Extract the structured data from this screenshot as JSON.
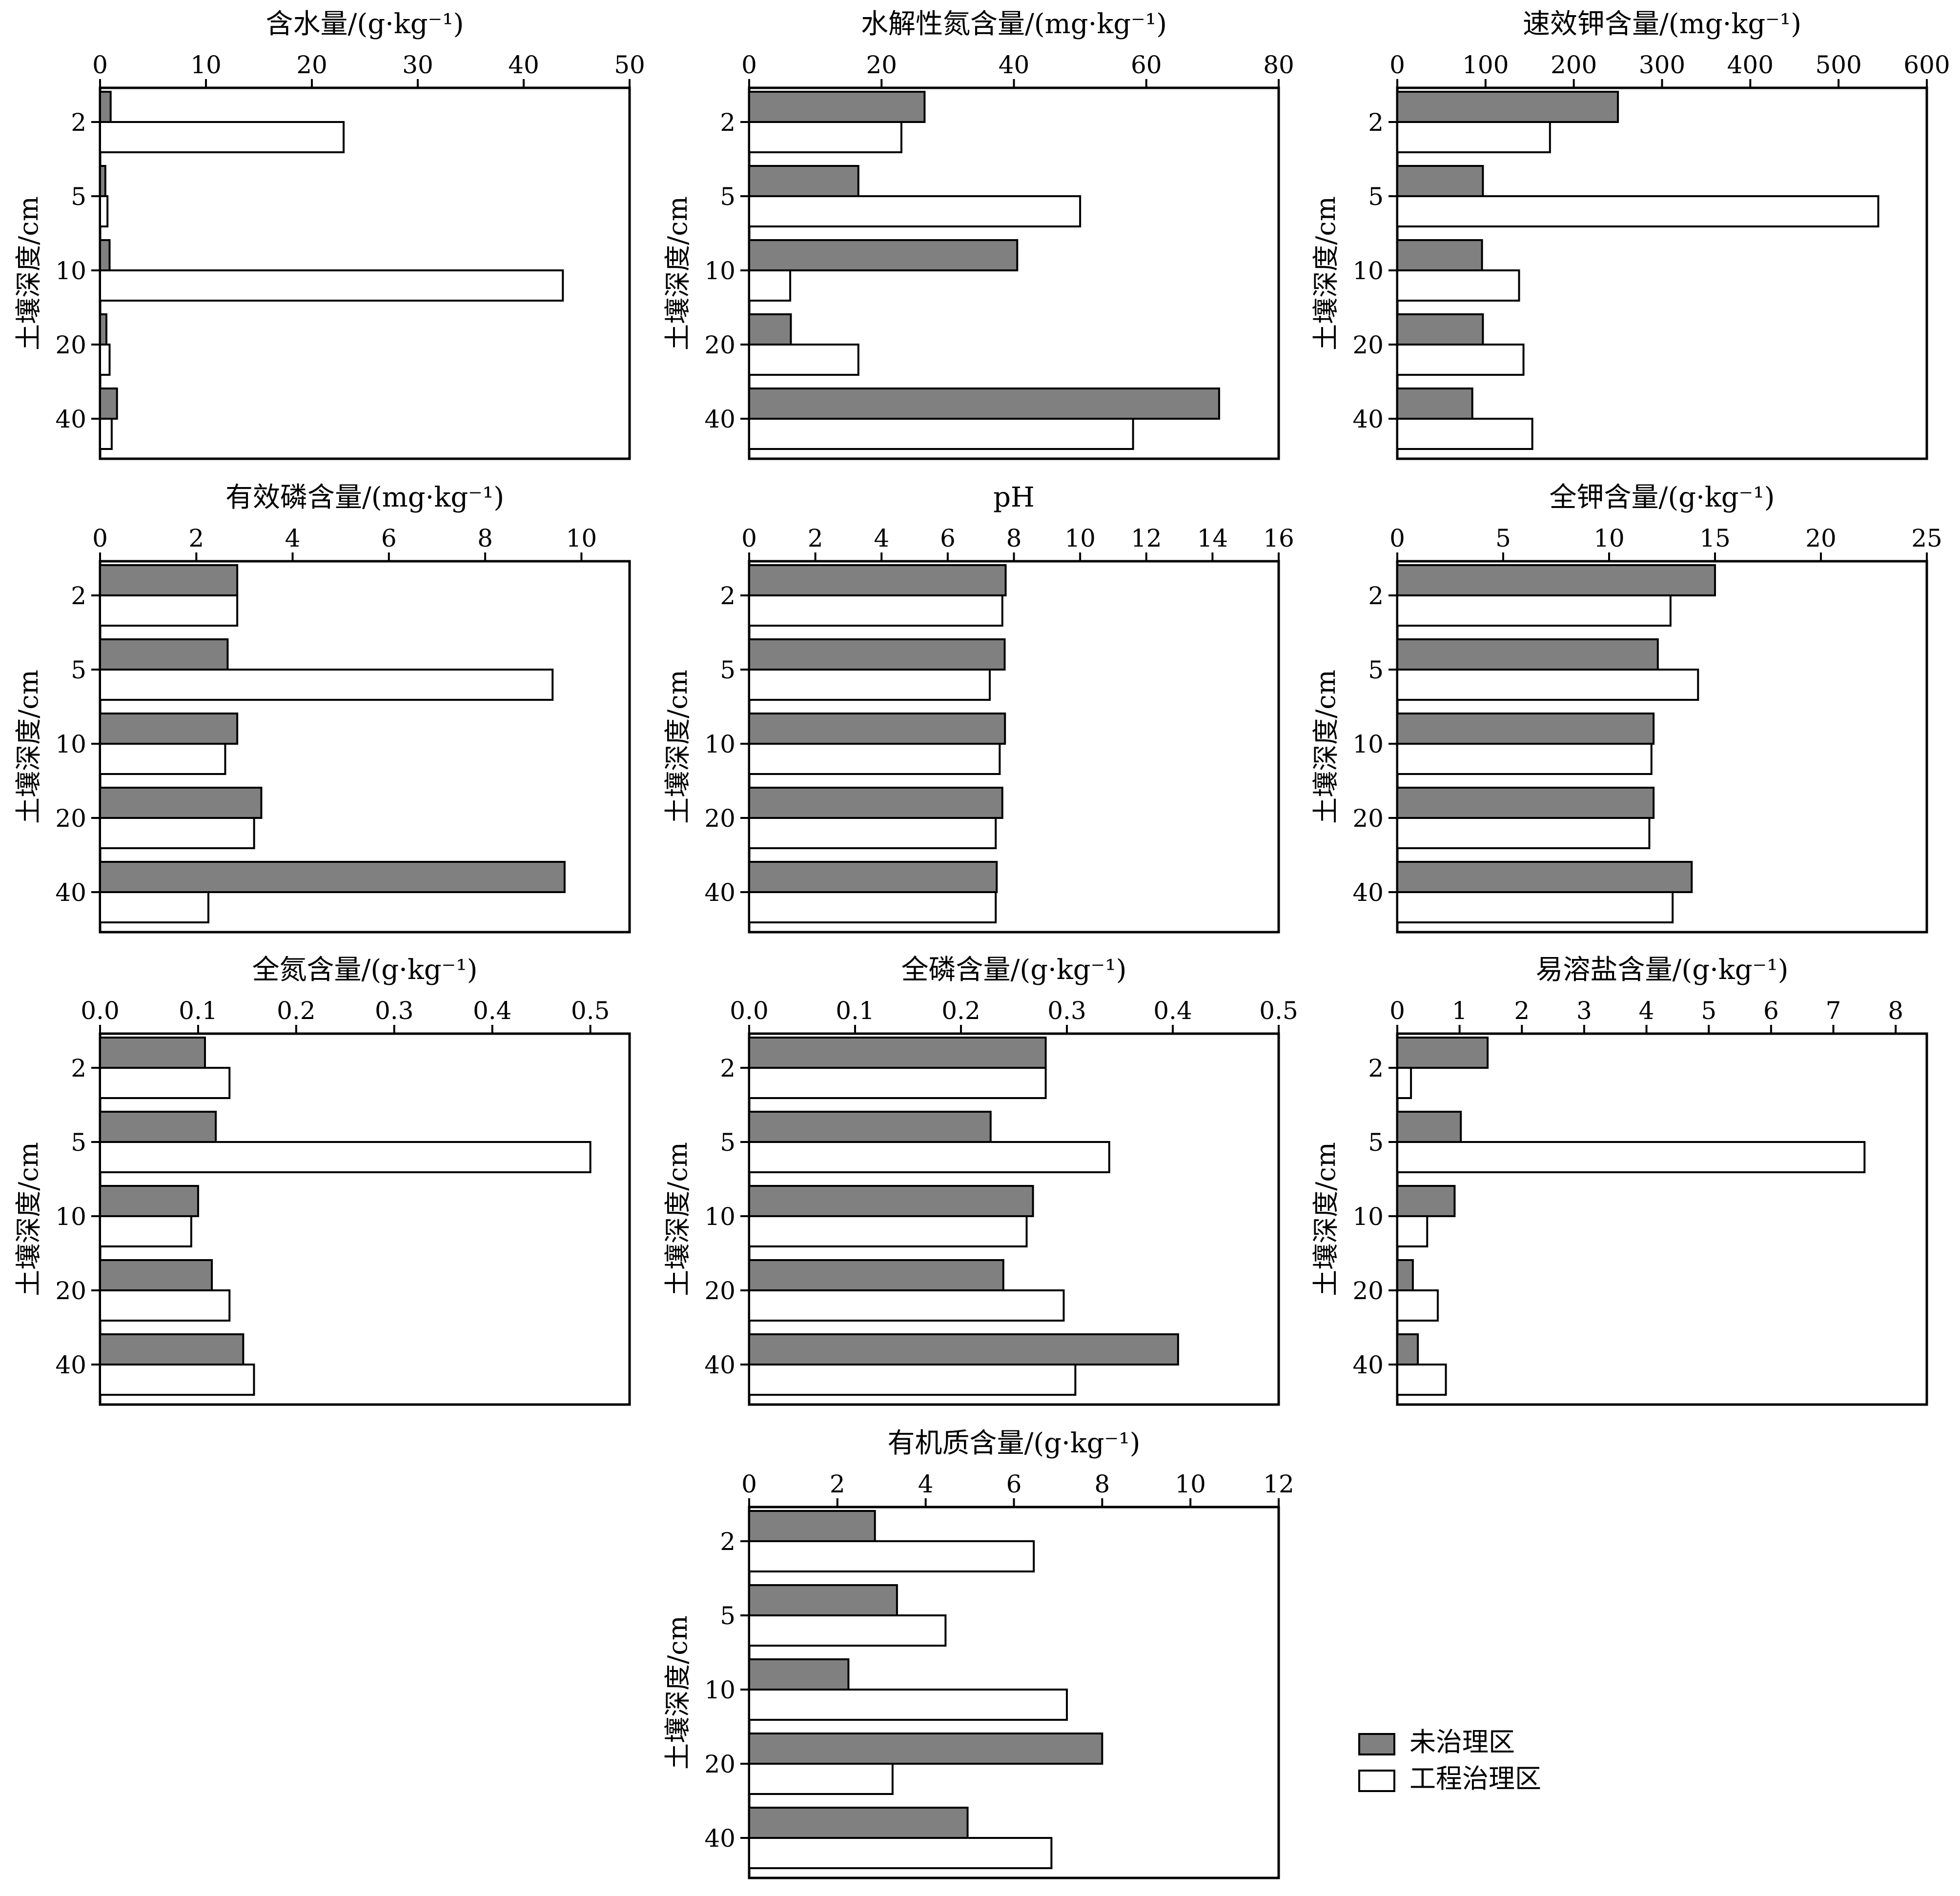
{
  "colors": {
    "untreated": "#808080",
    "treated": "#ffffff",
    "stroke": "#000000"
  },
  "chart_data": [
    {
      "type": "bar",
      "orientation": "horizontal",
      "title": "含水量/(g·kg⁻¹)",
      "ylabel": "土壤深度/cm",
      "categories": [
        "2",
        "5",
        "10",
        "20",
        "40"
      ],
      "xlim": [
        0,
        50
      ],
      "xticks": [
        "0",
        "10",
        "20",
        "30",
        "40",
        "50"
      ],
      "series": [
        {
          "name": "未治理区",
          "values": [
            1.0,
            0.5,
            0.9,
            0.6,
            1.6
          ]
        },
        {
          "name": "工程治理区",
          "values": [
            23.0,
            0.7,
            43.7,
            0.9,
            1.1
          ]
        }
      ]
    },
    {
      "type": "bar",
      "orientation": "horizontal",
      "title": "水解性氮含量/(mg·kg⁻¹)",
      "ylabel": "土壤深度/cm",
      "categories": [
        "2",
        "5",
        "10",
        "20",
        "40"
      ],
      "xlim": [
        0,
        80
      ],
      "xticks": [
        "0",
        "20",
        "40",
        "60",
        "80"
      ],
      "series": [
        {
          "name": "未治理区",
          "values": [
            26.5,
            16.5,
            40.5,
            6.3,
            71.0
          ]
        },
        {
          "name": "工程治理区",
          "values": [
            23.0,
            50.0,
            6.2,
            16.5,
            58.0
          ]
        }
      ]
    },
    {
      "type": "bar",
      "orientation": "horizontal",
      "title": "速效钾含量/(mg·kg⁻¹)",
      "ylabel": "土壤深度/cm",
      "categories": [
        "2",
        "5",
        "10",
        "20",
        "40"
      ],
      "xlim": [
        0,
        600
      ],
      "xticks": [
        "0",
        "100",
        "200",
        "300",
        "400",
        "500",
        "600"
      ],
      "series": [
        {
          "name": "未治理区",
          "values": [
            250,
            97,
            96,
            97,
            85
          ]
        },
        {
          "name": "工程治理区",
          "values": [
            173,
            545,
            138,
            143,
            153
          ]
        }
      ]
    },
    {
      "type": "bar",
      "orientation": "horizontal",
      "title": "有效磷含量/(mg·kg⁻¹)",
      "ylabel": "土壤深度/cm",
      "categories": [
        "2",
        "5",
        "10",
        "20",
        "40"
      ],
      "xlim": [
        0,
        11
      ],
      "xticks": [
        "0",
        "2",
        "4",
        "6",
        "8",
        "10"
      ],
      "xtick_values": [
        0,
        2,
        4,
        6,
        8,
        10
      ],
      "series": [
        {
          "name": "未治理区",
          "values": [
            2.85,
            2.65,
            2.85,
            3.35,
            9.65
          ]
        },
        {
          "name": "工程治理区",
          "values": [
            2.85,
            9.4,
            2.6,
            3.2,
            2.25
          ]
        }
      ]
    },
    {
      "type": "bar",
      "orientation": "horizontal",
      "title": "pH",
      "ylabel": "土壤深度/cm",
      "categories": [
        "2",
        "5",
        "10",
        "20",
        "40"
      ],
      "xlim": [
        0,
        16
      ],
      "xticks": [
        "0",
        "2",
        "4",
        "6",
        "8",
        "10",
        "12",
        "14",
        "16"
      ],
      "series": [
        {
          "name": "未治理区",
          "values": [
            7.75,
            7.72,
            7.73,
            7.65,
            7.48
          ]
        },
        {
          "name": "工程治理区",
          "values": [
            7.65,
            7.27,
            7.57,
            7.45,
            7.45
          ]
        }
      ]
    },
    {
      "type": "bar",
      "orientation": "horizontal",
      "title": "全钾含量/(g·kg⁻¹)",
      "ylabel": "土壤深度/cm",
      "categories": [
        "2",
        "5",
        "10",
        "20",
        "40"
      ],
      "xlim": [
        0,
        25
      ],
      "xticks": [
        "0",
        "5",
        "10",
        "15",
        "20",
        "25"
      ],
      "series": [
        {
          "name": "未治理区",
          "values": [
            15.0,
            12.3,
            12.1,
            12.1,
            13.9
          ]
        },
        {
          "name": "工程治理区",
          "values": [
            12.9,
            14.2,
            12.0,
            11.9,
            13.0
          ]
        }
      ]
    },
    {
      "type": "bar",
      "orientation": "horizontal",
      "title": "全氮含量/(g·kg⁻¹)",
      "ylabel": "土壤深度/cm",
      "categories": [
        "2",
        "5",
        "10",
        "20",
        "40"
      ],
      "xlim": [
        0,
        0.54
      ],
      "xticks": [
        "0.0",
        "0.1",
        "0.2",
        "0.3",
        "0.4",
        "0.5"
      ],
      "xtick_values": [
        0,
        0.1,
        0.2,
        0.3,
        0.4,
        0.5
      ],
      "series": [
        {
          "name": "未治理区",
          "values": [
            0.107,
            0.118,
            0.1,
            0.114,
            0.146
          ]
        },
        {
          "name": "工程治理区",
          "values": [
            0.132,
            0.5,
            0.093,
            0.132,
            0.157
          ]
        }
      ]
    },
    {
      "type": "bar",
      "orientation": "horizontal",
      "title": "全磷含量/(g·kg⁻¹)",
      "ylabel": "土壤深度/cm",
      "categories": [
        "2",
        "5",
        "10",
        "20",
        "40"
      ],
      "xlim": [
        0,
        0.5
      ],
      "xticks": [
        "0.0",
        "0.1",
        "0.2",
        "0.3",
        "0.4",
        "0.5"
      ],
      "series": [
        {
          "name": "未治理区",
          "values": [
            0.28,
            0.228,
            0.268,
            0.24,
            0.405
          ]
        },
        {
          "name": "工程治理区",
          "values": [
            0.28,
            0.34,
            0.262,
            0.297,
            0.308
          ]
        }
      ]
    },
    {
      "type": "bar",
      "orientation": "horizontal",
      "title": "易溶盐含量/(g·kg⁻¹)",
      "ylabel": "土壤深度/cm",
      "categories": [
        "2",
        "5",
        "10",
        "20",
        "40"
      ],
      "xlim": [
        0,
        8.5
      ],
      "xticks": [
        "0",
        "1",
        "2",
        "3",
        "4",
        "5",
        "6",
        "7",
        "8"
      ],
      "xtick_values": [
        0,
        1,
        2,
        3,
        4,
        5,
        6,
        7,
        8
      ],
      "series": [
        {
          "name": "未治理区",
          "values": [
            1.45,
            1.02,
            0.92,
            0.25,
            0.33
          ]
        },
        {
          "name": "工程治理区",
          "values": [
            0.22,
            7.5,
            0.48,
            0.65,
            0.78
          ]
        }
      ]
    },
    {
      "type": "bar",
      "orientation": "horizontal",
      "title": "有机质含量/(g·kg⁻¹)",
      "ylabel": "土壤深度/cm",
      "categories": [
        "2",
        "5",
        "10",
        "20",
        "40"
      ],
      "xlim": [
        0,
        12
      ],
      "xticks": [
        "0",
        "2",
        "4",
        "6",
        "8",
        "10",
        "12"
      ],
      "series": [
        {
          "name": "未治理区",
          "values": [
            2.85,
            3.35,
            2.25,
            8.0,
            4.95
          ]
        },
        {
          "name": "工程治理区",
          "values": [
            6.45,
            4.45,
            7.2,
            3.25,
            6.85
          ]
        }
      ]
    }
  ],
  "legend": {
    "placement": "bottom-right",
    "items": [
      {
        "label": "未治理区",
        "color": "#808080"
      },
      {
        "label": "工程治理区",
        "color": "#ffffff"
      }
    ]
  }
}
